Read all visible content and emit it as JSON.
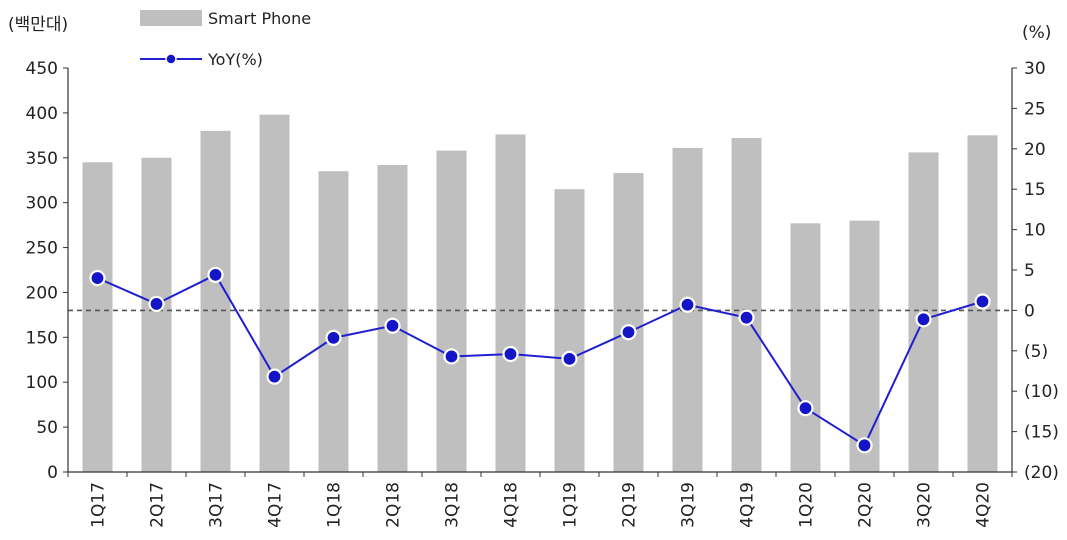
{
  "chart_data": {
    "type": "bar+line",
    "categories": [
      "1Q17",
      "2Q17",
      "3Q17",
      "4Q17",
      "1Q18",
      "2Q18",
      "3Q18",
      "4Q18",
      "1Q19",
      "2Q19",
      "3Q19",
      "4Q19",
      "1Q20",
      "2Q20",
      "3Q20",
      "4Q20"
    ],
    "series": [
      {
        "name": "Smart Phone",
        "type": "bar",
        "axis": "left",
        "color": "#bfbfbf",
        "values": [
          345,
          350,
          380,
          398,
          335,
          342,
          358,
          376,
          315,
          333,
          361,
          372,
          277,
          280,
          356,
          375
        ]
      },
      {
        "name": "YoY(%)",
        "type": "line",
        "axis": "right",
        "color": "#1f1fd0",
        "values": [
          4.0,
          0.8,
          4.4,
          -8.2,
          -3.4,
          -1.9,
          -5.7,
          -5.4,
          -6.0,
          -2.7,
          0.7,
          -0.9,
          -12.1,
          -16.7,
          -1.1,
          1.1
        ]
      }
    ],
    "left_axis": {
      "unit_label": "(백만대)",
      "range": [
        0,
        450
      ],
      "ticks": [
        "0",
        "50",
        "100",
        "150",
        "200",
        "250",
        "300",
        "350",
        "400",
        "450"
      ]
    },
    "right_axis": {
      "unit_label": "(%)",
      "range": [
        -20,
        30
      ],
      "ticks": [
        "(20)",
        "(15)",
        "(10)",
        "(5)",
        "0",
        "5",
        "10",
        "15",
        "20",
        "25",
        "30"
      ]
    },
    "reference_line": {
      "axis": "right",
      "value": 0,
      "style": "dashed",
      "color": "#555555"
    },
    "legend": {
      "placement": "top-left"
    },
    "grid": false
  }
}
